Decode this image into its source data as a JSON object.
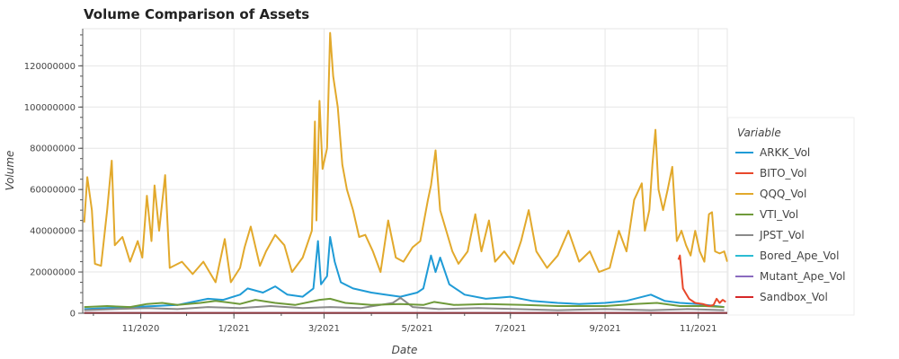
{
  "chart_data": {
    "type": "line",
    "title": "Volume Comparison of Assets",
    "xlabel": "Date",
    "ylabel": "Volume",
    "x_range": [
      "2020-09-24",
      "2021-11-20"
    ],
    "ylim": [
      0,
      138000000
    ],
    "x_ticks": [
      {
        "date": "2020-11-01",
        "label": "11/2020"
      },
      {
        "date": "2021-01-01",
        "label": "1/2021"
      },
      {
        "date": "2021-03-01",
        "label": "3/2021"
      },
      {
        "date": "2021-05-01",
        "label": "5/2021"
      },
      {
        "date": "2021-07-01",
        "label": "7/2021"
      },
      {
        "date": "2021-09-01",
        "label": "9/2021"
      },
      {
        "date": "2021-11-01",
        "label": "11/2021"
      }
    ],
    "y_ticks": [
      0,
      20000000,
      40000000,
      60000000,
      80000000,
      100000000,
      120000000
    ],
    "y_tick_labels": [
      "0",
      "20000000",
      "40000000",
      "60000000",
      "80000000",
      "100000000",
      "120000000"
    ],
    "grid": true,
    "legend_title": "Variable",
    "legend_position": "right",
    "series": [
      {
        "name": "ARKK_Vol",
        "color": "#1f9bd6",
        "points": [
          [
            "2020-09-25",
            2000000
          ],
          [
            "2020-10-10",
            2500000
          ],
          [
            "2020-10-25",
            3000000
          ],
          [
            "2020-11-10",
            3500000
          ],
          [
            "2020-11-25",
            4000000
          ],
          [
            "2020-12-05",
            5500000
          ],
          [
            "2020-12-15",
            7000000
          ],
          [
            "2020-12-25",
            6500000
          ],
          [
            "2021-01-05",
            9000000
          ],
          [
            "2021-01-10",
            12000000
          ],
          [
            "2021-01-20",
            10000000
          ],
          [
            "2021-01-28",
            13000000
          ],
          [
            "2021-02-05",
            9000000
          ],
          [
            "2021-02-15",
            8000000
          ],
          [
            "2021-02-22",
            12000000
          ],
          [
            "2021-02-25",
            35000000
          ],
          [
            "2021-02-27",
            14000000
          ],
          [
            "2021-03-03",
            18000000
          ],
          [
            "2021-03-05",
            37000000
          ],
          [
            "2021-03-08",
            25000000
          ],
          [
            "2021-03-12",
            15000000
          ],
          [
            "2021-03-20",
            12000000
          ],
          [
            "2021-04-01",
            10000000
          ],
          [
            "2021-04-10",
            9000000
          ],
          [
            "2021-04-20",
            8000000
          ],
          [
            "2021-05-01",
            10000000
          ],
          [
            "2021-05-05",
            12000000
          ],
          [
            "2021-05-10",
            28000000
          ],
          [
            "2021-05-13",
            20000000
          ],
          [
            "2021-05-16",
            27000000
          ],
          [
            "2021-05-22",
            14000000
          ],
          [
            "2021-06-01",
            9000000
          ],
          [
            "2021-06-15",
            7000000
          ],
          [
            "2021-07-01",
            8000000
          ],
          [
            "2021-07-15",
            6000000
          ],
          [
            "2021-08-01",
            5000000
          ],
          [
            "2021-08-15",
            4500000
          ],
          [
            "2021-09-01",
            5000000
          ],
          [
            "2021-09-15",
            6000000
          ],
          [
            "2021-10-01",
            9000000
          ],
          [
            "2021-10-10",
            6000000
          ],
          [
            "2021-10-20",
            5000000
          ],
          [
            "2021-11-01",
            4500000
          ],
          [
            "2021-11-18",
            3000000
          ]
        ]
      },
      {
        "name": "BITO_Vol",
        "color": "#e8482b",
        "points": [
          [
            "2021-10-19",
            26000000
          ],
          [
            "2021-10-20",
            28000000
          ],
          [
            "2021-10-22",
            12000000
          ],
          [
            "2021-10-26",
            7000000
          ],
          [
            "2021-10-30",
            5000000
          ],
          [
            "2021-11-04",
            4500000
          ],
          [
            "2021-11-08",
            3500000
          ],
          [
            "2021-11-11",
            4000000
          ],
          [
            "2021-11-13",
            7000000
          ],
          [
            "2021-11-15",
            5000000
          ],
          [
            "2021-11-17",
            6500000
          ],
          [
            "2021-11-19",
            5500000
          ]
        ]
      },
      {
        "name": "QQQ_Vol",
        "color": "#e2a92c",
        "points": [
          [
            "2020-09-25",
            44000000
          ],
          [
            "2020-09-27",
            66000000
          ],
          [
            "2020-09-30",
            50000000
          ],
          [
            "2020-10-02",
            24000000
          ],
          [
            "2020-10-06",
            23000000
          ],
          [
            "2020-10-10",
            50000000
          ],
          [
            "2020-10-13",
            74000000
          ],
          [
            "2020-10-15",
            33000000
          ],
          [
            "2020-10-20",
            37000000
          ],
          [
            "2020-10-25",
            25000000
          ],
          [
            "2020-10-30",
            35000000
          ],
          [
            "2020-11-02",
            27000000
          ],
          [
            "2020-11-05",
            57000000
          ],
          [
            "2020-11-08",
            35000000
          ],
          [
            "2020-11-10",
            62000000
          ],
          [
            "2020-11-13",
            40000000
          ],
          [
            "2020-11-17",
            67000000
          ],
          [
            "2020-11-20",
            22000000
          ],
          [
            "2020-11-28",
            25000000
          ],
          [
            "2020-12-05",
            19000000
          ],
          [
            "2020-12-12",
            25000000
          ],
          [
            "2020-12-20",
            15000000
          ],
          [
            "2020-12-26",
            36000000
          ],
          [
            "2020-12-30",
            15000000
          ],
          [
            "2021-01-05",
            22000000
          ],
          [
            "2021-01-08",
            32000000
          ],
          [
            "2021-01-12",
            42000000
          ],
          [
            "2021-01-18",
            23000000
          ],
          [
            "2021-01-22",
            30000000
          ],
          [
            "2021-01-28",
            38000000
          ],
          [
            "2021-02-03",
            33000000
          ],
          [
            "2021-02-08",
            20000000
          ],
          [
            "2021-02-15",
            27000000
          ],
          [
            "2021-02-21",
            40000000
          ],
          [
            "2021-02-23",
            93000000
          ],
          [
            "2021-02-24",
            45000000
          ],
          [
            "2021-02-26",
            103000000
          ],
          [
            "2021-02-28",
            70000000
          ],
          [
            "2021-03-03",
            80000000
          ],
          [
            "2021-03-05",
            136000000
          ],
          [
            "2021-03-07",
            115000000
          ],
          [
            "2021-03-10",
            100000000
          ],
          [
            "2021-03-13",
            72000000
          ],
          [
            "2021-03-16",
            60000000
          ],
          [
            "2021-03-20",
            50000000
          ],
          [
            "2021-03-24",
            37000000
          ],
          [
            "2021-03-28",
            38000000
          ],
          [
            "2021-04-02",
            30000000
          ],
          [
            "2021-04-07",
            20000000
          ],
          [
            "2021-04-12",
            45000000
          ],
          [
            "2021-04-17",
            27000000
          ],
          [
            "2021-04-22",
            25000000
          ],
          [
            "2021-04-28",
            32000000
          ],
          [
            "2021-05-03",
            35000000
          ],
          [
            "2021-05-08",
            55000000
          ],
          [
            "2021-05-10",
            62000000
          ],
          [
            "2021-05-13",
            79000000
          ],
          [
            "2021-05-16",
            50000000
          ],
          [
            "2021-05-20",
            40000000
          ],
          [
            "2021-05-24",
            30000000
          ],
          [
            "2021-05-28",
            24000000
          ],
          [
            "2021-06-03",
            30000000
          ],
          [
            "2021-06-08",
            48000000
          ],
          [
            "2021-06-12",
            30000000
          ],
          [
            "2021-06-17",
            45000000
          ],
          [
            "2021-06-21",
            25000000
          ],
          [
            "2021-06-27",
            30000000
          ],
          [
            "2021-07-03",
            24000000
          ],
          [
            "2021-07-08",
            35000000
          ],
          [
            "2021-07-13",
            50000000
          ],
          [
            "2021-07-18",
            30000000
          ],
          [
            "2021-07-25",
            22000000
          ],
          [
            "2021-08-01",
            28000000
          ],
          [
            "2021-08-08",
            40000000
          ],
          [
            "2021-08-15",
            25000000
          ],
          [
            "2021-08-22",
            30000000
          ],
          [
            "2021-08-28",
            20000000
          ],
          [
            "2021-09-04",
            22000000
          ],
          [
            "2021-09-10",
            40000000
          ],
          [
            "2021-09-15",
            30000000
          ],
          [
            "2021-09-20",
            55000000
          ],
          [
            "2021-09-25",
            63000000
          ],
          [
            "2021-09-27",
            40000000
          ],
          [
            "2021-09-30",
            50000000
          ],
          [
            "2021-10-02",
            72000000
          ],
          [
            "2021-10-04",
            89000000
          ],
          [
            "2021-10-06",
            60000000
          ],
          [
            "2021-10-09",
            50000000
          ],
          [
            "2021-10-12",
            60000000
          ],
          [
            "2021-10-15",
            71000000
          ],
          [
            "2021-10-18",
            35000000
          ],
          [
            "2021-10-21",
            40000000
          ],
          [
            "2021-10-24",
            33000000
          ],
          [
            "2021-10-27",
            28000000
          ],
          [
            "2021-10-30",
            40000000
          ],
          [
            "2021-11-02",
            30000000
          ],
          [
            "2021-11-05",
            25000000
          ],
          [
            "2021-11-08",
            48000000
          ],
          [
            "2021-11-10",
            49000000
          ],
          [
            "2021-11-12",
            30000000
          ],
          [
            "2021-11-15",
            29000000
          ],
          [
            "2021-11-18",
            30000000
          ],
          [
            "2021-11-20",
            25000000
          ]
        ]
      },
      {
        "name": "VTI_Vol",
        "color": "#6f9a3a",
        "points": [
          [
            "2020-09-25",
            3000000
          ],
          [
            "2020-10-10",
            3500000
          ],
          [
            "2020-10-25",
            3000000
          ],
          [
            "2020-11-05",
            4500000
          ],
          [
            "2020-11-15",
            5000000
          ],
          [
            "2020-11-25",
            4000000
          ],
          [
            "2020-12-10",
            5000000
          ],
          [
            "2020-12-20",
            6000000
          ],
          [
            "2021-01-05",
            4500000
          ],
          [
            "2021-01-15",
            6500000
          ],
          [
            "2021-01-28",
            5000000
          ],
          [
            "2021-02-10",
            4000000
          ],
          [
            "2021-02-26",
            6500000
          ],
          [
            "2021-03-05",
            7000000
          ],
          [
            "2021-03-15",
            5000000
          ],
          [
            "2021-04-01",
            4000000
          ],
          [
            "2021-04-20",
            4500000
          ],
          [
            "2021-05-05",
            4000000
          ],
          [
            "2021-05-12",
            5500000
          ],
          [
            "2021-05-25",
            4000000
          ],
          [
            "2021-06-15",
            4500000
          ],
          [
            "2021-07-10",
            4000000
          ],
          [
            "2021-08-01",
            3500000
          ],
          [
            "2021-09-01",
            3500000
          ],
          [
            "2021-09-20",
            4500000
          ],
          [
            "2021-10-05",
            5000000
          ],
          [
            "2021-10-20",
            3500000
          ],
          [
            "2021-11-05",
            3500000
          ],
          [
            "2021-11-18",
            3000000
          ]
        ]
      },
      {
        "name": "JPST_Vol",
        "color": "#8a8a8a",
        "points": [
          [
            "2020-09-25",
            1500000
          ],
          [
            "2020-10-15",
            2000000
          ],
          [
            "2020-11-05",
            2500000
          ],
          [
            "2020-11-25",
            2000000
          ],
          [
            "2020-12-15",
            3000000
          ],
          [
            "2021-01-05",
            2500000
          ],
          [
            "2021-01-25",
            3500000
          ],
          [
            "2021-02-15",
            2500000
          ],
          [
            "2021-03-05",
            3000000
          ],
          [
            "2021-03-25",
            2500000
          ],
          [
            "2021-04-15",
            5000000
          ],
          [
            "2021-04-20",
            7500000
          ],
          [
            "2021-04-28",
            3000000
          ],
          [
            "2021-05-15",
            2000000
          ],
          [
            "2021-06-10",
            2500000
          ],
          [
            "2021-07-05",
            2000000
          ],
          [
            "2021-08-01",
            1500000
          ],
          [
            "2021-09-01",
            2000000
          ],
          [
            "2021-10-01",
            1500000
          ],
          [
            "2021-10-25",
            2000000
          ],
          [
            "2021-11-18",
            1500000
          ]
        ]
      },
      {
        "name": "Bored_Ape_Vol",
        "color": "#2bbcd3",
        "points": [
          [
            "2020-09-25",
            200000
          ],
          [
            "2021-11-20",
            200000
          ]
        ]
      },
      {
        "name": "Mutant_Ape_Vol",
        "color": "#8b6bbf",
        "points": [
          [
            "2020-09-25",
            150000
          ],
          [
            "2021-11-20",
            150000
          ]
        ]
      },
      {
        "name": "Sandbox_Vol",
        "color": "#d62728",
        "points": [
          [
            "2020-09-25",
            100000
          ],
          [
            "2021-11-20",
            100000
          ]
        ]
      }
    ]
  }
}
